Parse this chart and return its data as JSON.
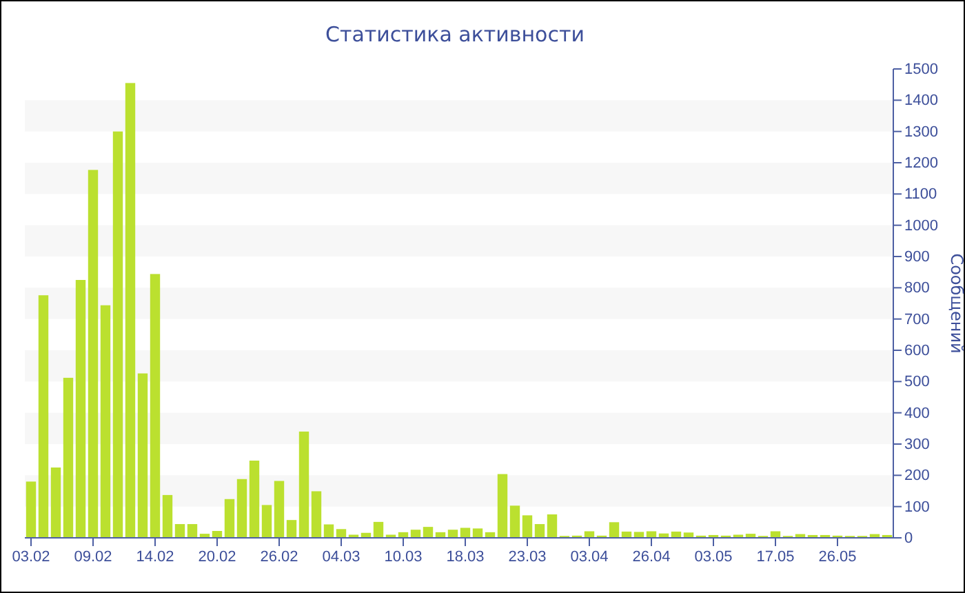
{
  "chart_data": {
    "type": "bar",
    "title": "Статистика активности",
    "ylabel": "Сообщений",
    "categories": [
      "03.02",
      null,
      null,
      null,
      null,
      "09.02",
      null,
      null,
      null,
      null,
      "14.02",
      null,
      null,
      null,
      null,
      "20.02",
      null,
      null,
      null,
      null,
      "26.02",
      null,
      null,
      null,
      null,
      "04.03",
      null,
      null,
      null,
      null,
      "10.03",
      null,
      null,
      null,
      null,
      "18.03",
      null,
      null,
      null,
      null,
      "23.03",
      null,
      null,
      null,
      null,
      "03.04",
      null,
      null,
      null,
      null,
      "26.04",
      null,
      null,
      null,
      null,
      "03.05",
      null,
      null,
      null,
      null,
      "17.05",
      null,
      null,
      null,
      null,
      "26.05",
      null,
      null,
      null,
      null
    ],
    "values": [
      180,
      776,
      225,
      512,
      825,
      1177,
      744,
      1300,
      1455,
      526,
      844,
      137,
      44,
      44,
      13,
      22,
      124,
      188,
      247,
      105,
      182,
      57,
      340,
      149,
      43,
      28,
      10,
      16,
      51,
      10,
      18,
      26,
      35,
      18,
      26,
      32,
      30,
      18,
      204,
      103,
      72,
      44,
      75,
      6,
      7,
      21,
      7,
      50,
      20,
      19,
      21,
      14,
      20,
      17,
      7,
      9,
      7,
      10,
      13,
      6,
      21,
      6,
      12,
      9,
      9,
      7,
      6,
      6,
      12,
      9
    ],
    "color": "#bbe02f",
    "ylim": [
      0,
      1500
    ],
    "yticks": [
      0,
      100,
      200,
      300,
      400,
      500,
      600,
      700,
      800,
      900,
      1000,
      1100,
      1200,
      1300,
      1400,
      1500
    ],
    "bands": [
      {
        "axis": "y",
        "from": 100,
        "to": 200,
        "color": "#f7f7f7"
      },
      {
        "axis": "y",
        "from": 300,
        "to": 400,
        "color": "#f7f7f7"
      },
      {
        "axis": "y",
        "from": 500,
        "to": 600,
        "color": "#f7f7f7"
      },
      {
        "axis": "y",
        "from": 700,
        "to": 800,
        "color": "#f7f7f7"
      },
      {
        "axis": "y",
        "from": 900,
        "to": 1000,
        "color": "#f7f7f7"
      },
      {
        "axis": "y",
        "from": 1100,
        "to": 1200,
        "color": "#f7f7f7"
      },
      {
        "axis": "y",
        "from": 1300,
        "to": 1400,
        "color": "#f7f7f7"
      }
    ]
  }
}
